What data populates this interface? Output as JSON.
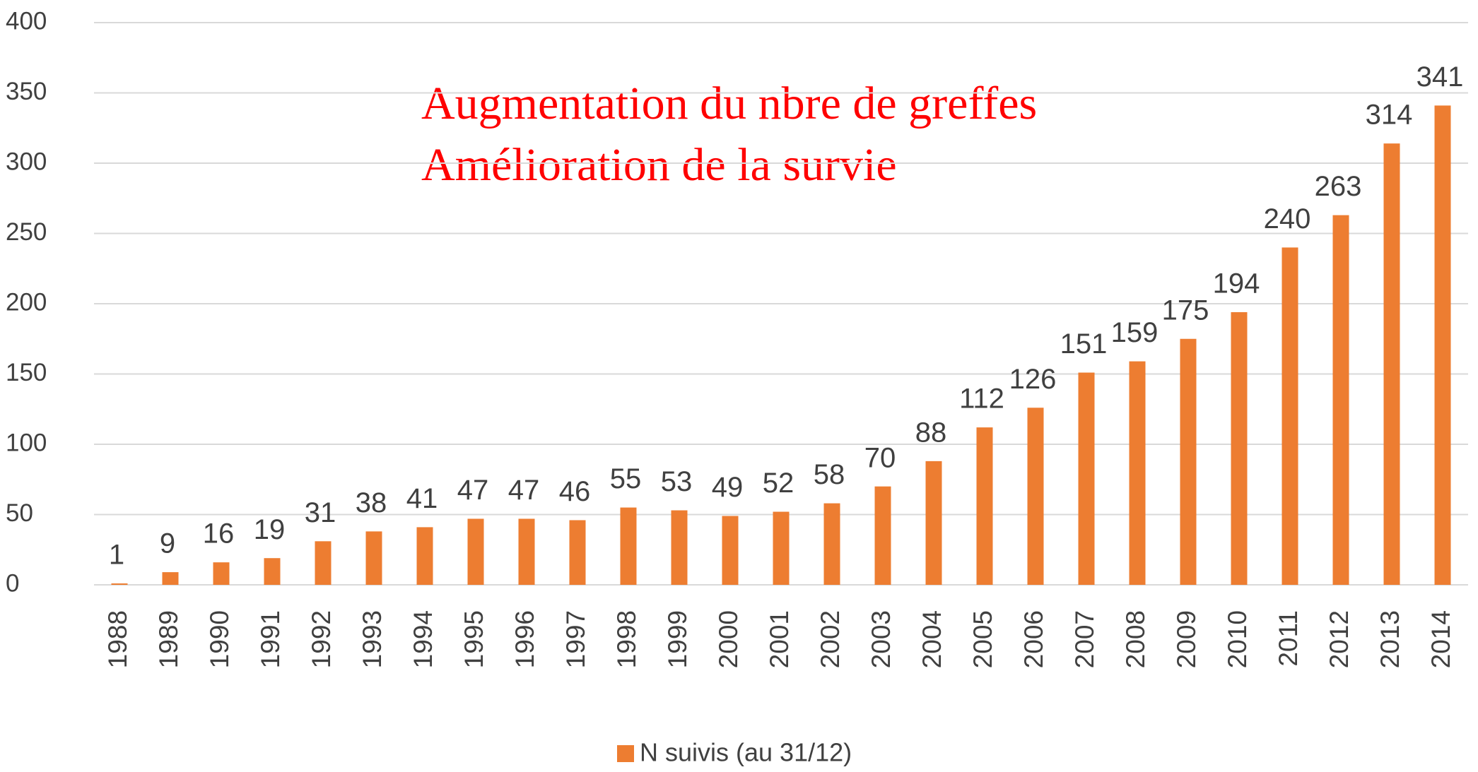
{
  "chart_data": {
    "type": "bar",
    "annotations": [
      "Augmentation du nbre de greffes",
      "Amélioration de la survie"
    ],
    "categories": [
      "1988",
      "1989",
      "1990",
      "1991",
      "1992",
      "1993",
      "1994",
      "1995",
      "1996",
      "1997",
      "1998",
      "1999",
      "2000",
      "2001",
      "2002",
      "2003",
      "2004",
      "2005",
      "2006",
      "2007",
      "2008",
      "2009",
      "2010",
      "2011",
      "2012",
      "2013",
      "2014"
    ],
    "series": [
      {
        "name": "N suivis (au 31/12)",
        "color": "#ed7d31",
        "values": [
          1,
          9,
          16,
          19,
          31,
          38,
          41,
          47,
          47,
          46,
          55,
          53,
          49,
          52,
          58,
          70,
          88,
          112,
          126,
          151,
          159,
          175,
          194,
          240,
          263,
          314,
          341
        ]
      }
    ],
    "ylim": [
      0,
      400
    ],
    "yticks": [
      0,
      50,
      100,
      150,
      200,
      250,
      300,
      350,
      400
    ],
    "grid": true,
    "legend": "bottom"
  }
}
